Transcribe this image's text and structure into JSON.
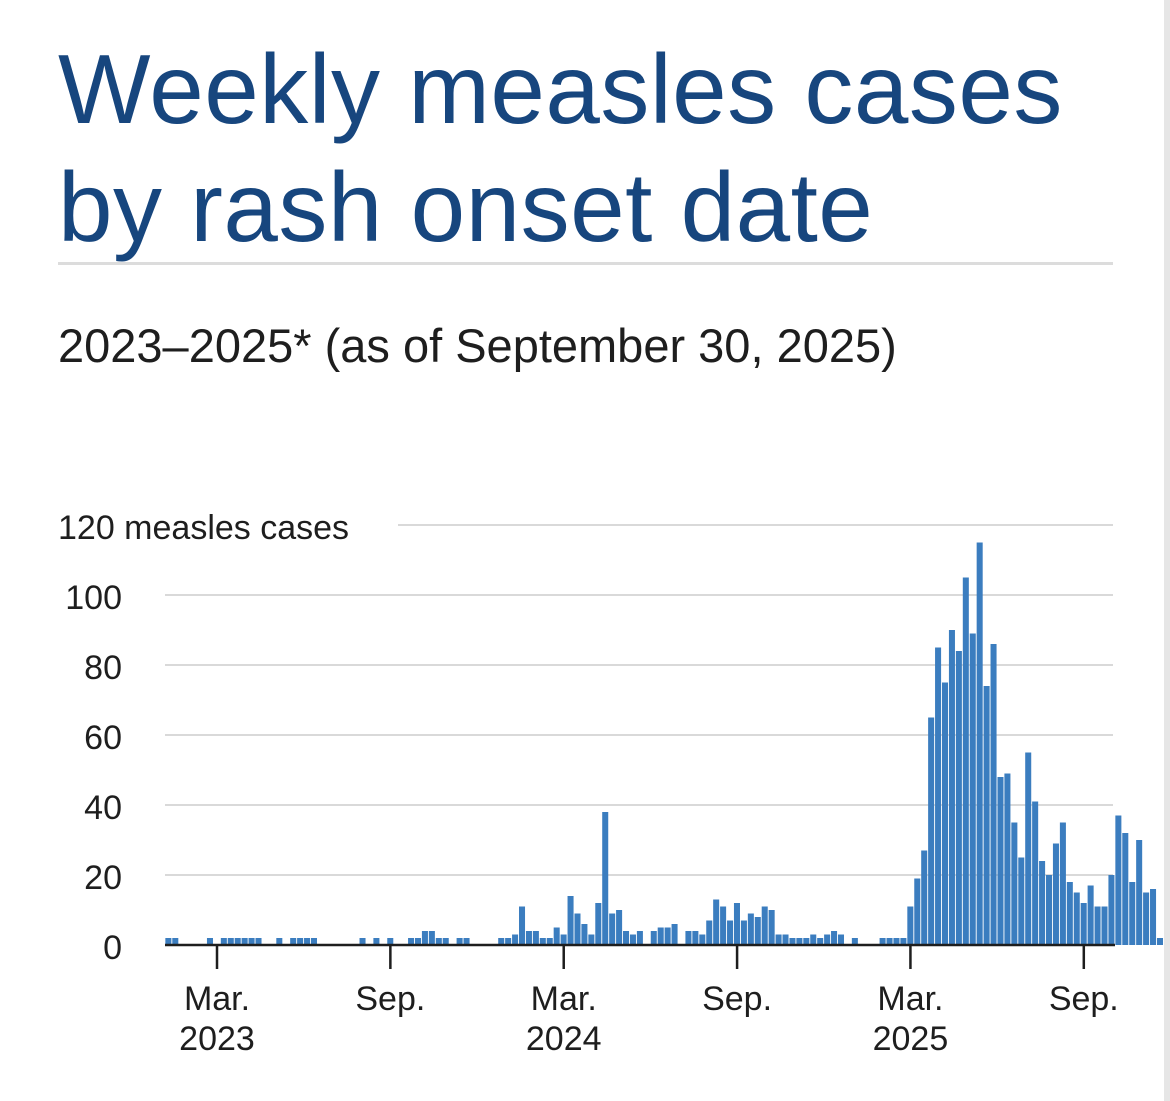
{
  "title": "Weekly measles cases by rash onset date",
  "subtitle": "2023–2025* (as of September 30, 2025)",
  "colors": {
    "title": "#17467e",
    "bar": "#3b7dbf",
    "grid": "#d9d9d9",
    "text": "#1e1e1e"
  },
  "chart_data": {
    "type": "bar",
    "title": "Weekly measles cases by rash onset date",
    "subtitle": "2023–2025* (as of September 30, 2025)",
    "ylabel": "measles cases",
    "ylim": [
      0,
      120
    ],
    "yticks": [
      0,
      20,
      40,
      60,
      80,
      100,
      120
    ],
    "top_tick_label": "120 measles cases",
    "grid": true,
    "x_start_week": 0,
    "x_end_week": 137,
    "xticks": [
      {
        "week": 7.5,
        "label": "Mar.",
        "year": "2023"
      },
      {
        "week": 32.5,
        "label": "Sep.",
        "year": ""
      },
      {
        "week": 57.5,
        "label": "Mar.",
        "year": "2024"
      },
      {
        "week": 82.5,
        "label": "Sep.",
        "year": ""
      },
      {
        "week": 107.5,
        "label": "Mar.",
        "year": "2025"
      },
      {
        "week": 132.5,
        "label": "Sep.",
        "year": ""
      }
    ],
    "series": [
      {
        "name": "Weekly measles cases",
        "values": [
          2,
          2,
          0,
          0,
          0,
          0,
          2,
          0,
          2,
          2,
          2,
          2,
          2,
          2,
          0,
          0,
          2,
          0,
          2,
          2,
          2,
          2,
          0,
          0,
          0,
          0,
          0,
          0,
          2,
          0,
          2,
          0,
          2,
          0,
          0,
          2,
          2,
          4,
          4,
          2,
          2,
          0,
          2,
          2,
          0,
          0,
          0,
          0,
          2,
          2,
          3,
          11,
          4,
          4,
          2,
          2,
          5,
          3,
          14,
          9,
          6,
          3,
          12,
          38,
          9,
          10,
          4,
          3,
          4,
          0,
          4,
          5,
          5,
          6,
          0,
          4,
          4,
          3,
          7,
          13,
          11,
          7,
          12,
          7,
          9,
          8,
          11,
          10,
          3,
          3,
          2,
          2,
          2,
          3,
          2,
          3,
          4,
          3,
          0,
          2,
          0,
          0,
          0,
          2,
          2,
          2,
          2,
          11,
          19,
          27,
          65,
          85,
          75,
          90,
          84,
          105,
          89,
          115,
          74,
          86,
          48,
          49,
          35,
          25,
          55,
          41,
          24,
          20,
          29,
          35,
          18,
          15,
          12,
          17,
          11,
          11,
          20,
          37,
          32,
          18,
          30,
          15,
          16,
          2
        ]
      }
    ]
  }
}
